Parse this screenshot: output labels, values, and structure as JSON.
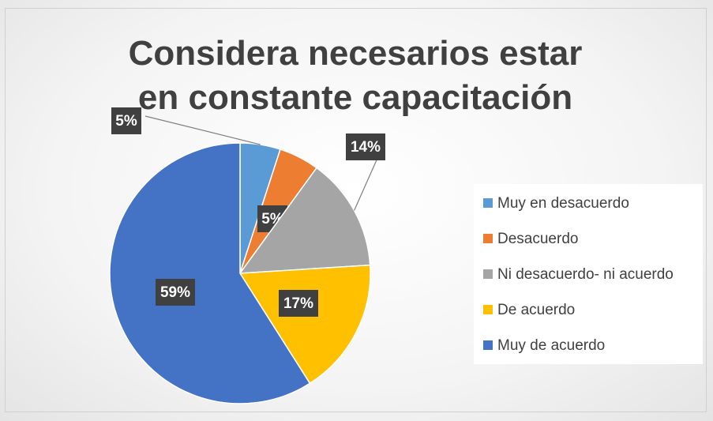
{
  "chart_data": {
    "type": "pie",
    "title": "Considera necesarios estar en constante capacitación",
    "categories": [
      "Muy en desacuerdo",
      "Desacuerdo",
      "Ni desacuerdo- ni acuerdo",
      "De acuerdo",
      "Muy de acuerdo"
    ],
    "values": [
      5,
      5,
      14,
      17,
      59
    ],
    "value_labels": [
      "5%",
      "5%",
      "14%",
      "17%",
      "59%"
    ],
    "colors": [
      "#5b9bd5",
      "#ed7d31",
      "#a5a5a5",
      "#ffc000",
      "#4472c4"
    ],
    "legend": "right"
  }
}
